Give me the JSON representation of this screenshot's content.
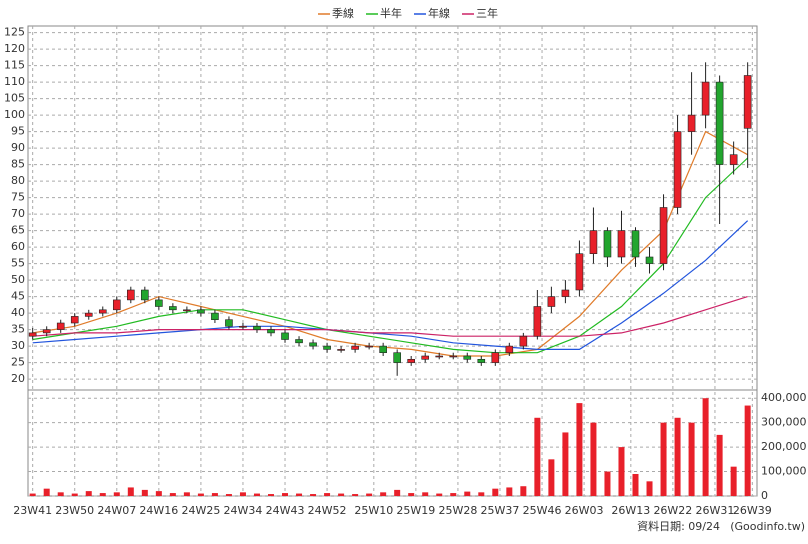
{
  "chart_data": {
    "type": "candlestick",
    "legend": "top",
    "up_color": "#e8202a",
    "down_color": "#22a52e",
    "x": [
      0,
      3,
      6,
      9,
      12,
      15,
      18,
      21,
      24,
      27,
      30,
      33,
      36,
      39,
      42,
      45,
      48,
      51,
      54,
      57,
      60,
      63,
      66,
      69,
      72,
      75,
      78,
      81,
      84,
      87,
      90,
      93,
      96,
      99,
      102,
      105,
      108,
      111,
      114,
      117,
      120,
      123,
      126,
      129,
      132,
      135,
      138,
      141,
      144,
      147,
      150,
      153
    ],
    "open": [
      33,
      34,
      35,
      37,
      39,
      40,
      41,
      44,
      47,
      44,
      42,
      41,
      41,
      40,
      38,
      36,
      36,
      35,
      34,
      32,
      31,
      30,
      29,
      29,
      30,
      30,
      28,
      25,
      26,
      27,
      27,
      27,
      26,
      25,
      28,
      30,
      33,
      42,
      45,
      47,
      58,
      65,
      57,
      65,
      57,
      55,
      72,
      95,
      100,
      110,
      85,
      96
    ],
    "high": [
      35.5,
      36,
      38,
      40,
      41,
      42,
      45,
      48,
      48,
      45,
      43,
      42,
      42,
      41,
      39,
      37,
      37,
      36,
      35,
      33,
      32,
      31,
      30,
      31,
      31,
      31,
      29,
      27,
      28,
      28,
      28,
      28,
      27,
      29,
      31,
      34,
      47,
      48,
      50,
      62,
      72,
      66,
      71,
      66,
      60,
      76,
      100,
      113,
      116,
      112,
      92,
      116
    ],
    "low": [
      32,
      33,
      34,
      36,
      38,
      39,
      40,
      43,
      43,
      41,
      40,
      40,
      39,
      37,
      35,
      35,
      34,
      33,
      31,
      30,
      29,
      28,
      28,
      28,
      29,
      27,
      21,
      24,
      25,
      26,
      26,
      25,
      24,
      24,
      27,
      29,
      32,
      40,
      43,
      45,
      55,
      54,
      55,
      54,
      52,
      53,
      70,
      88,
      96,
      67,
      82,
      84
    ],
    "close": [
      34,
      35,
      37,
      39,
      40,
      41,
      44,
      47,
      44,
      42,
      41,
      41,
      40,
      38,
      36,
      36,
      35,
      34,
      32,
      31,
      30,
      29,
      29,
      30,
      30,
      28,
      25,
      26,
      27,
      27,
      27,
      26,
      25,
      28,
      30,
      33,
      42,
      45,
      47,
      58,
      65,
      57,
      65,
      57,
      55,
      72,
      95,
      100,
      110,
      85,
      88,
      112
    ],
    "volume": [
      10000,
      30000,
      15000,
      10000,
      20000,
      12000,
      15000,
      35000,
      25000,
      20000,
      12000,
      15000,
      10000,
      12000,
      8000,
      15000,
      10000,
      8000,
      12000,
      10000,
      8000,
      12000,
      10000,
      8000,
      10000,
      15000,
      25000,
      12000,
      15000,
      10000,
      12000,
      18000,
      15000,
      30000,
      35000,
      40000,
      320000,
      150000,
      260000,
      380000,
      300000,
      100000,
      200000,
      90000,
      60000,
      300000,
      320000,
      300000,
      400000,
      250000,
      120000,
      370000
    ],
    "volume_color": "#e8202a",
    "series": [
      {
        "name": "季線",
        "color": "#e07b2a",
        "x": [
          0,
          9,
          18,
          27,
          36,
          45,
          54,
          63,
          72,
          81,
          90,
          99,
          108,
          117,
          126,
          135,
          144,
          153
        ],
        "values": [
          34,
          36,
          40,
          45,
          42,
          39,
          36,
          32,
          30,
          29,
          27,
          27,
          29,
          39,
          53,
          65,
          95,
          88
        ]
      },
      {
        "name": "半年",
        "color": "#22bb22",
        "x": [
          0,
          9,
          18,
          27,
          36,
          45,
          54,
          63,
          72,
          81,
          90,
          99,
          108,
          117,
          126,
          135,
          144,
          153
        ],
        "values": [
          32,
          34,
          36,
          39,
          41,
          41,
          38,
          35,
          33,
          31,
          29,
          28,
          28,
          33,
          42,
          55,
          75,
          87
        ]
      },
      {
        "name": "年線",
        "color": "#2255dd",
        "x": [
          0,
          9,
          18,
          27,
          36,
          45,
          54,
          63,
          72,
          81,
          90,
          99,
          108,
          117,
          126,
          135,
          144,
          153
        ],
        "values": [
          31,
          32,
          33,
          34,
          35,
          36,
          36,
          35,
          34,
          33,
          31,
          30,
          29,
          29,
          37,
          46,
          56,
          68
        ]
      },
      {
        "name": "三年",
        "color": "#cc2266",
        "x": [
          0,
          9,
          18,
          27,
          36,
          45,
          54,
          63,
          72,
          81,
          90,
          99,
          108,
          117,
          126,
          135,
          144,
          153
        ],
        "values": [
          33,
          34,
          34,
          35,
          35,
          35,
          35,
          35,
          34,
          34,
          33,
          33,
          33,
          33,
          34,
          37,
          41,
          45
        ]
      }
    ],
    "xlim": [
      -1,
      155
    ],
    "xticks": [
      {
        "value": 0,
        "label": "23W41"
      },
      {
        "value": 9,
        "label": "23W50"
      },
      {
        "value": 18,
        "label": "24W07"
      },
      {
        "value": 27,
        "label": "24W16"
      },
      {
        "value": 36,
        "label": "24W25"
      },
      {
        "value": 45,
        "label": "24W34"
      },
      {
        "value": 54,
        "label": "24W43"
      },
      {
        "value": 63,
        "label": "24W52"
      },
      {
        "value": 73,
        "label": "25W10"
      },
      {
        "value": 82,
        "label": "25W19"
      },
      {
        "value": 91,
        "label": "25W28"
      },
      {
        "value": 100,
        "label": "25W37"
      },
      {
        "value": 109,
        "label": "25W46"
      },
      {
        "value": 118,
        "label": "26W03"
      },
      {
        "value": 128,
        "label": "26W13"
      },
      {
        "value": 137,
        "label": "26W22"
      },
      {
        "value": 146,
        "label": "26W31"
      },
      {
        "value": 154,
        "label": "26W39"
      }
    ],
    "ylim": [
      17,
      127
    ],
    "yticks": [
      20,
      25,
      30,
      35,
      40,
      45,
      50,
      55,
      60,
      65,
      70,
      75,
      80,
      85,
      90,
      95,
      100,
      105,
      110,
      115,
      120,
      125
    ],
    "y2lim": [
      0,
      450000
    ],
    "y2ticks": [
      0,
      {
        "value": 100000,
        "label": "100,000"
      },
      {
        "value": 200000,
        "label": "200,000"
      },
      {
        "value": 300000,
        "label": "300,000"
      },
      {
        "value": 400000,
        "label": "400,000"
      }
    ],
    "grid": true,
    "footer_date": "資料日期: 09/24",
    "footer_source": "(Goodinfo.tw)"
  }
}
